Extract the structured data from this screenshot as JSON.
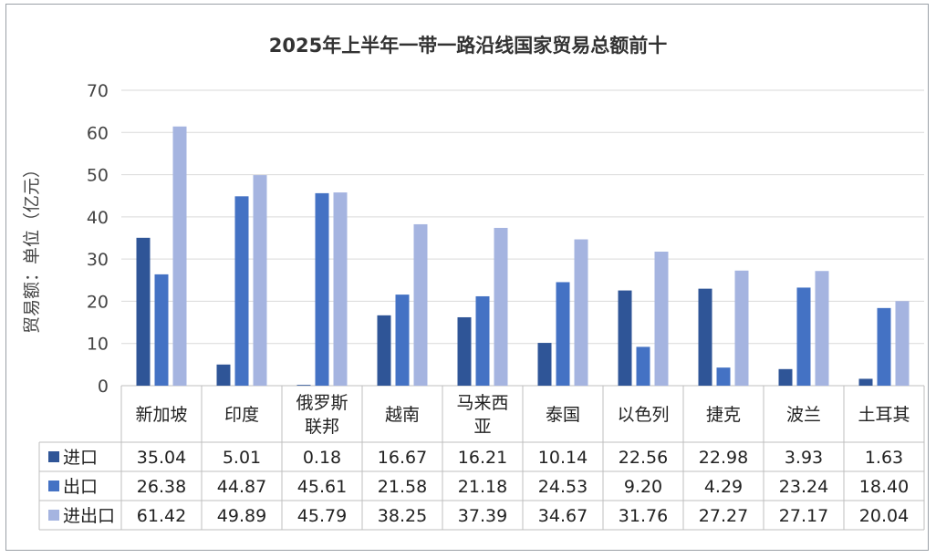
{
  "chart_data": {
    "type": "bar",
    "title": "2025年上半年一带一路沿线国家贸易总额前十",
    "ylabel": "贸易额：单位（亿元）",
    "ylim": [
      0,
      70
    ],
    "yticks": [
      0,
      10,
      20,
      30,
      40,
      50,
      60,
      70
    ],
    "grid": true,
    "legend": "data-table",
    "categories": [
      [
        "新加坡"
      ],
      [
        "印度"
      ],
      [
        "俄罗斯",
        "联邦"
      ],
      [
        "越南"
      ],
      [
        "马来西",
        "亚"
      ],
      [
        "泰国"
      ],
      [
        "以色列"
      ],
      [
        "捷克"
      ],
      [
        "波兰"
      ],
      [
        "土耳其"
      ]
    ],
    "series": [
      {
        "name": "进口",
        "color": "#2f5597",
        "values": [
          35.04,
          5.01,
          0.18,
          16.67,
          16.21,
          10.14,
          22.56,
          22.98,
          3.93,
          1.63
        ],
        "labels": [
          "35.04",
          "5.01",
          "0.18",
          "16.67",
          "16.21",
          "10.14",
          "22.56",
          "22.98",
          "3.93",
          "1.63"
        ]
      },
      {
        "name": "出口",
        "color": "#4472c4",
        "values": [
          26.38,
          44.87,
          45.61,
          21.58,
          21.18,
          24.53,
          9.2,
          4.29,
          23.24,
          18.4
        ],
        "labels": [
          "26.38",
          "44.87",
          "45.61",
          "21.58",
          "21.18",
          "24.53",
          "9.20",
          "4.29",
          "23.24",
          "18.40"
        ]
      },
      {
        "name": "进出口",
        "color": "#a5b4e0",
        "values": [
          61.42,
          49.89,
          45.79,
          38.25,
          37.39,
          34.67,
          31.76,
          27.27,
          27.17,
          20.04
        ],
        "labels": [
          "61.42",
          "49.89",
          "45.79",
          "38.25",
          "37.39",
          "34.67",
          "31.76",
          "27.27",
          "27.17",
          "20.04"
        ]
      }
    ]
  }
}
